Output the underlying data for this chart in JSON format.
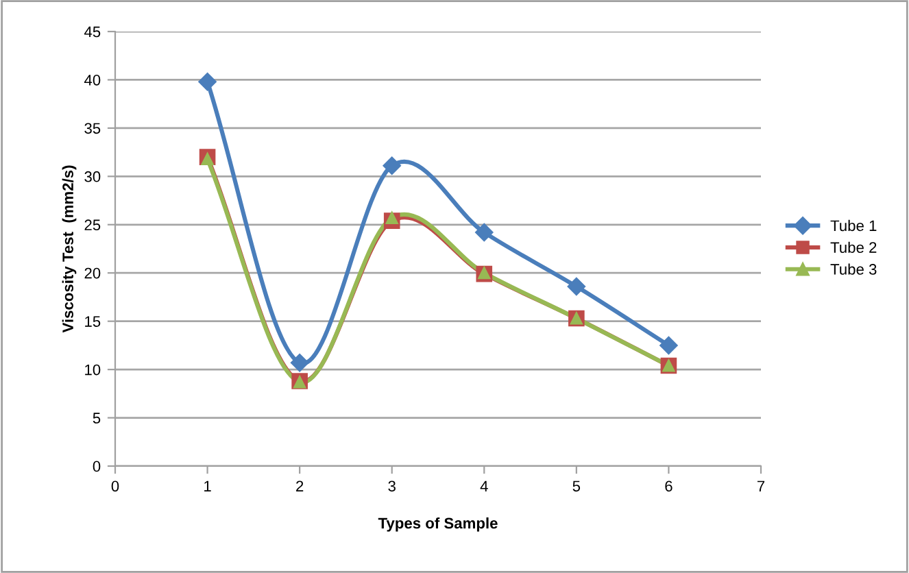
{
  "chart_data": {
    "type": "line",
    "xlabel": "Types of Sample",
    "ylabel": "Viscosity Test  (mm2/s)",
    "x": [
      1,
      2,
      3,
      4,
      5,
      6
    ],
    "series": [
      {
        "name": "Tube 1",
        "color": "#4a7ebb",
        "marker": "diamond",
        "values": [
          39.8,
          10.7,
          31.1,
          24.2,
          18.6,
          12.5
        ]
      },
      {
        "name": "Tube 2",
        "color": "#be4b48",
        "marker": "square",
        "values": [
          32.0,
          8.8,
          25.4,
          19.9,
          15.3,
          10.4
        ]
      },
      {
        "name": "Tube 3",
        "color": "#98b954",
        "marker": "triangle",
        "values": [
          31.8,
          8.7,
          25.7,
          20.0,
          15.3,
          10.4
        ]
      }
    ],
    "xlim": [
      0,
      7
    ],
    "xticks": [
      0,
      1,
      2,
      3,
      4,
      5,
      6,
      7
    ],
    "ylim": [
      0,
      45
    ],
    "yticks": [
      0,
      5,
      10,
      15,
      20,
      25,
      30,
      35,
      40,
      45
    ],
    "grid": "y",
    "legend": "right"
  }
}
